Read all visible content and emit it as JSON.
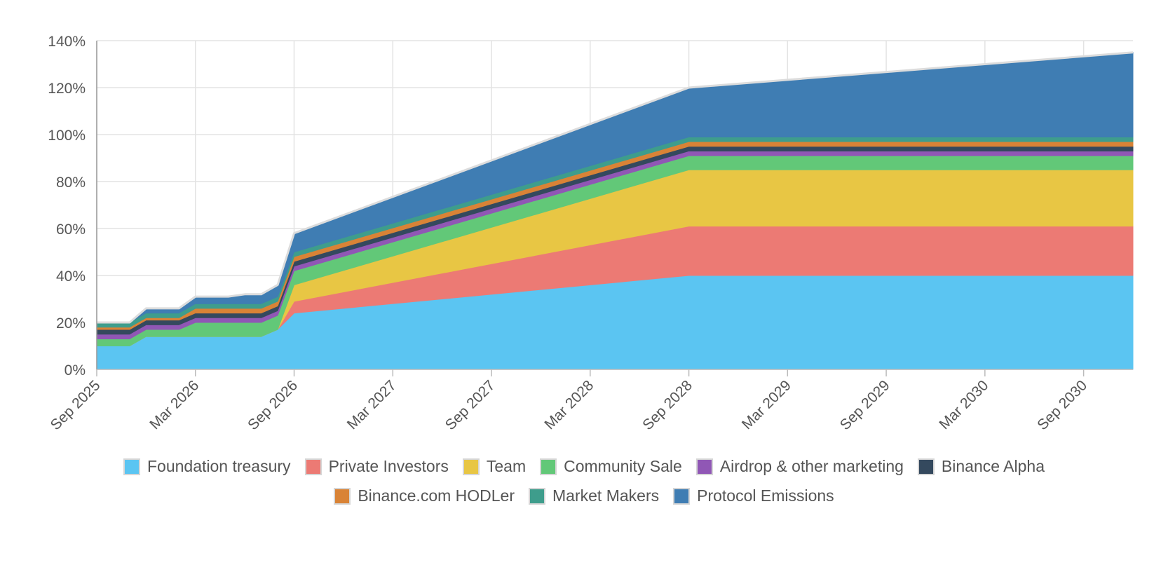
{
  "chart_data": {
    "type": "area",
    "stacked": true,
    "x": [
      "Sep 2025",
      "Oct 2025",
      "Nov 2025",
      "Dec 2025",
      "Jan 2026",
      "Feb 2026",
      "Mar 2026",
      "Apr 2026",
      "May 2026",
      "Jun 2026",
      "Jul 2026",
      "Aug 2026",
      "Sep 2026",
      "Sep 2028",
      "Dec 2030"
    ],
    "x_ticks": [
      "Sep 2025",
      "Mar 2026",
      "Sep 2026",
      "Mar 2027",
      "Sep 2027",
      "Mar 2028",
      "Sep 2028",
      "Mar 2029",
      "Sep 2029",
      "Mar 2030",
      "Sep 2030"
    ],
    "y_ticks": [
      "0%",
      "20%",
      "40%",
      "60%",
      "80%",
      "100%",
      "120%",
      "140%"
    ],
    "ylim": [
      0,
      140
    ],
    "grid": true,
    "legend_position": "bottom",
    "series": [
      {
        "name": "Foundation treasury",
        "color": "#5bc5f2",
        "values": [
          10,
          10,
          10,
          14,
          14,
          14,
          14,
          14,
          14,
          14,
          14,
          17,
          24,
          40,
          40
        ]
      },
      {
        "name": "Private Investors",
        "color": "#ec7a74",
        "values": [
          0,
          0,
          0,
          0,
          0,
          0,
          0,
          0,
          0,
          0,
          0,
          0,
          5,
          21,
          21
        ]
      },
      {
        "name": "Team",
        "color": "#e8c644",
        "values": [
          0,
          0,
          0,
          0,
          0,
          0,
          0,
          0,
          0,
          0,
          0,
          0,
          7,
          24,
          24
        ]
      },
      {
        "name": "Community Sale",
        "color": "#62c878",
        "values": [
          3,
          3,
          3,
          3,
          3,
          3,
          6,
          6,
          6,
          6,
          6,
          6,
          6,
          6,
          6
        ]
      },
      {
        "name": "Airdrop & other marketing",
        "color": "#9057b5",
        "values": [
          2,
          2,
          2,
          2,
          2,
          2,
          2,
          2,
          2,
          2,
          2,
          2,
          2,
          2,
          2
        ]
      },
      {
        "name": "Binance Alpha",
        "color": "#34495e",
        "values": [
          2,
          2,
          2,
          2,
          2,
          2,
          2,
          2,
          2,
          2,
          2,
          2,
          2,
          2,
          2
        ]
      },
      {
        "name": "Binance.com HODLer",
        "color": "#d98336",
        "values": [
          1,
          1,
          1,
          1,
          1,
          1,
          2,
          2,
          2,
          2,
          2,
          2,
          2,
          2,
          2
        ]
      },
      {
        "name": "Market Makers",
        "color": "#3e9d8c",
        "values": [
          2,
          2,
          2,
          2,
          2,
          2,
          2,
          2,
          2,
          2,
          2,
          2,
          2,
          2,
          2
        ]
      },
      {
        "name": "Protocol Emissions",
        "color": "#3f7db3",
        "values": [
          0,
          0,
          0,
          2,
          2,
          2,
          3,
          3,
          3,
          4,
          4,
          5,
          8,
          21,
          36
        ]
      }
    ]
  }
}
